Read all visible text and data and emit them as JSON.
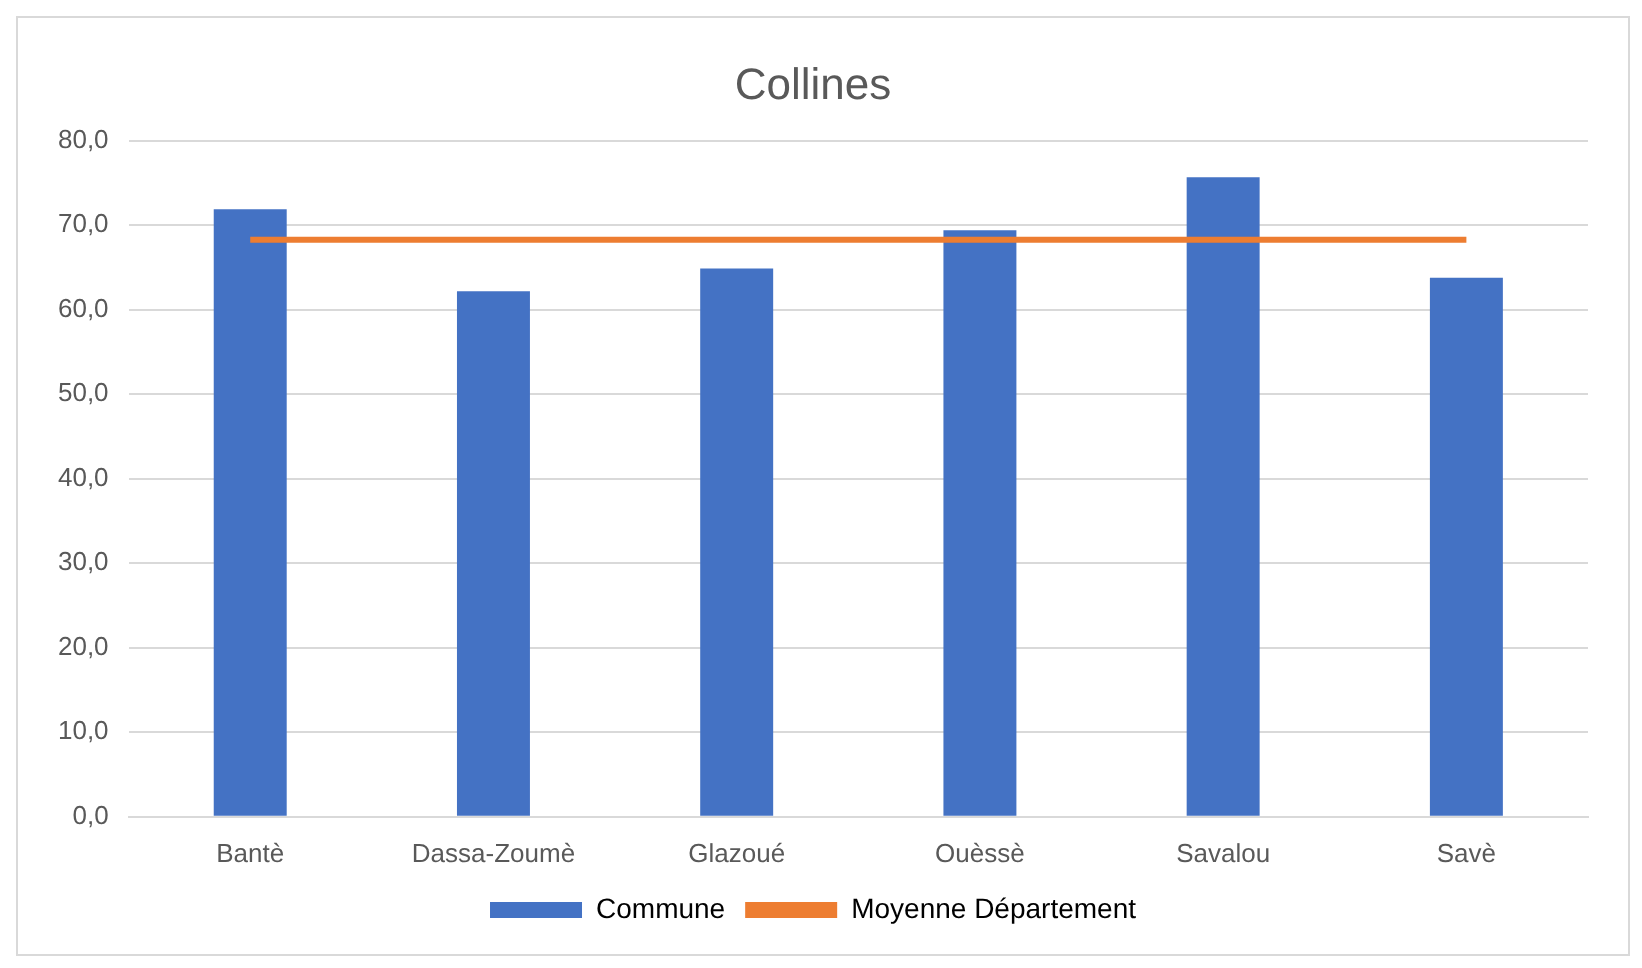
{
  "chart_data": {
    "type": "bar",
    "title": "Collines",
    "categories": [
      "Bantè",
      "Dassa-Zoumè",
      "Glazoué",
      "Ouèssè",
      "Savalou",
      "Savè"
    ],
    "series": [
      {
        "name": "Commune",
        "color": "#4472c4",
        "values": [
          71.9,
          62.2,
          64.9,
          69.4,
          75.7,
          63.8
        ]
      },
      {
        "name": "Moyenne Département",
        "type": "line",
        "color": "#ed7d31",
        "values": [
          68.3,
          68.3,
          68.3,
          68.3,
          68.3,
          68.3
        ]
      }
    ],
    "ylim": [
      0,
      80
    ],
    "yticks": [
      {
        "value": 0,
        "label": "0,0"
      },
      {
        "value": 10,
        "label": "10,0"
      },
      {
        "value": 20,
        "label": "20,0"
      },
      {
        "value": 30,
        "label": "30,0"
      },
      {
        "value": 40,
        "label": "40,0"
      },
      {
        "value": 50,
        "label": "50,0"
      },
      {
        "value": 60,
        "label": "60,0"
      },
      {
        "value": 70,
        "label": "70,0"
      },
      {
        "value": 80,
        "label": "80,0"
      }
    ],
    "grid": "y",
    "legend": "bottom",
    "marker": "none"
  }
}
